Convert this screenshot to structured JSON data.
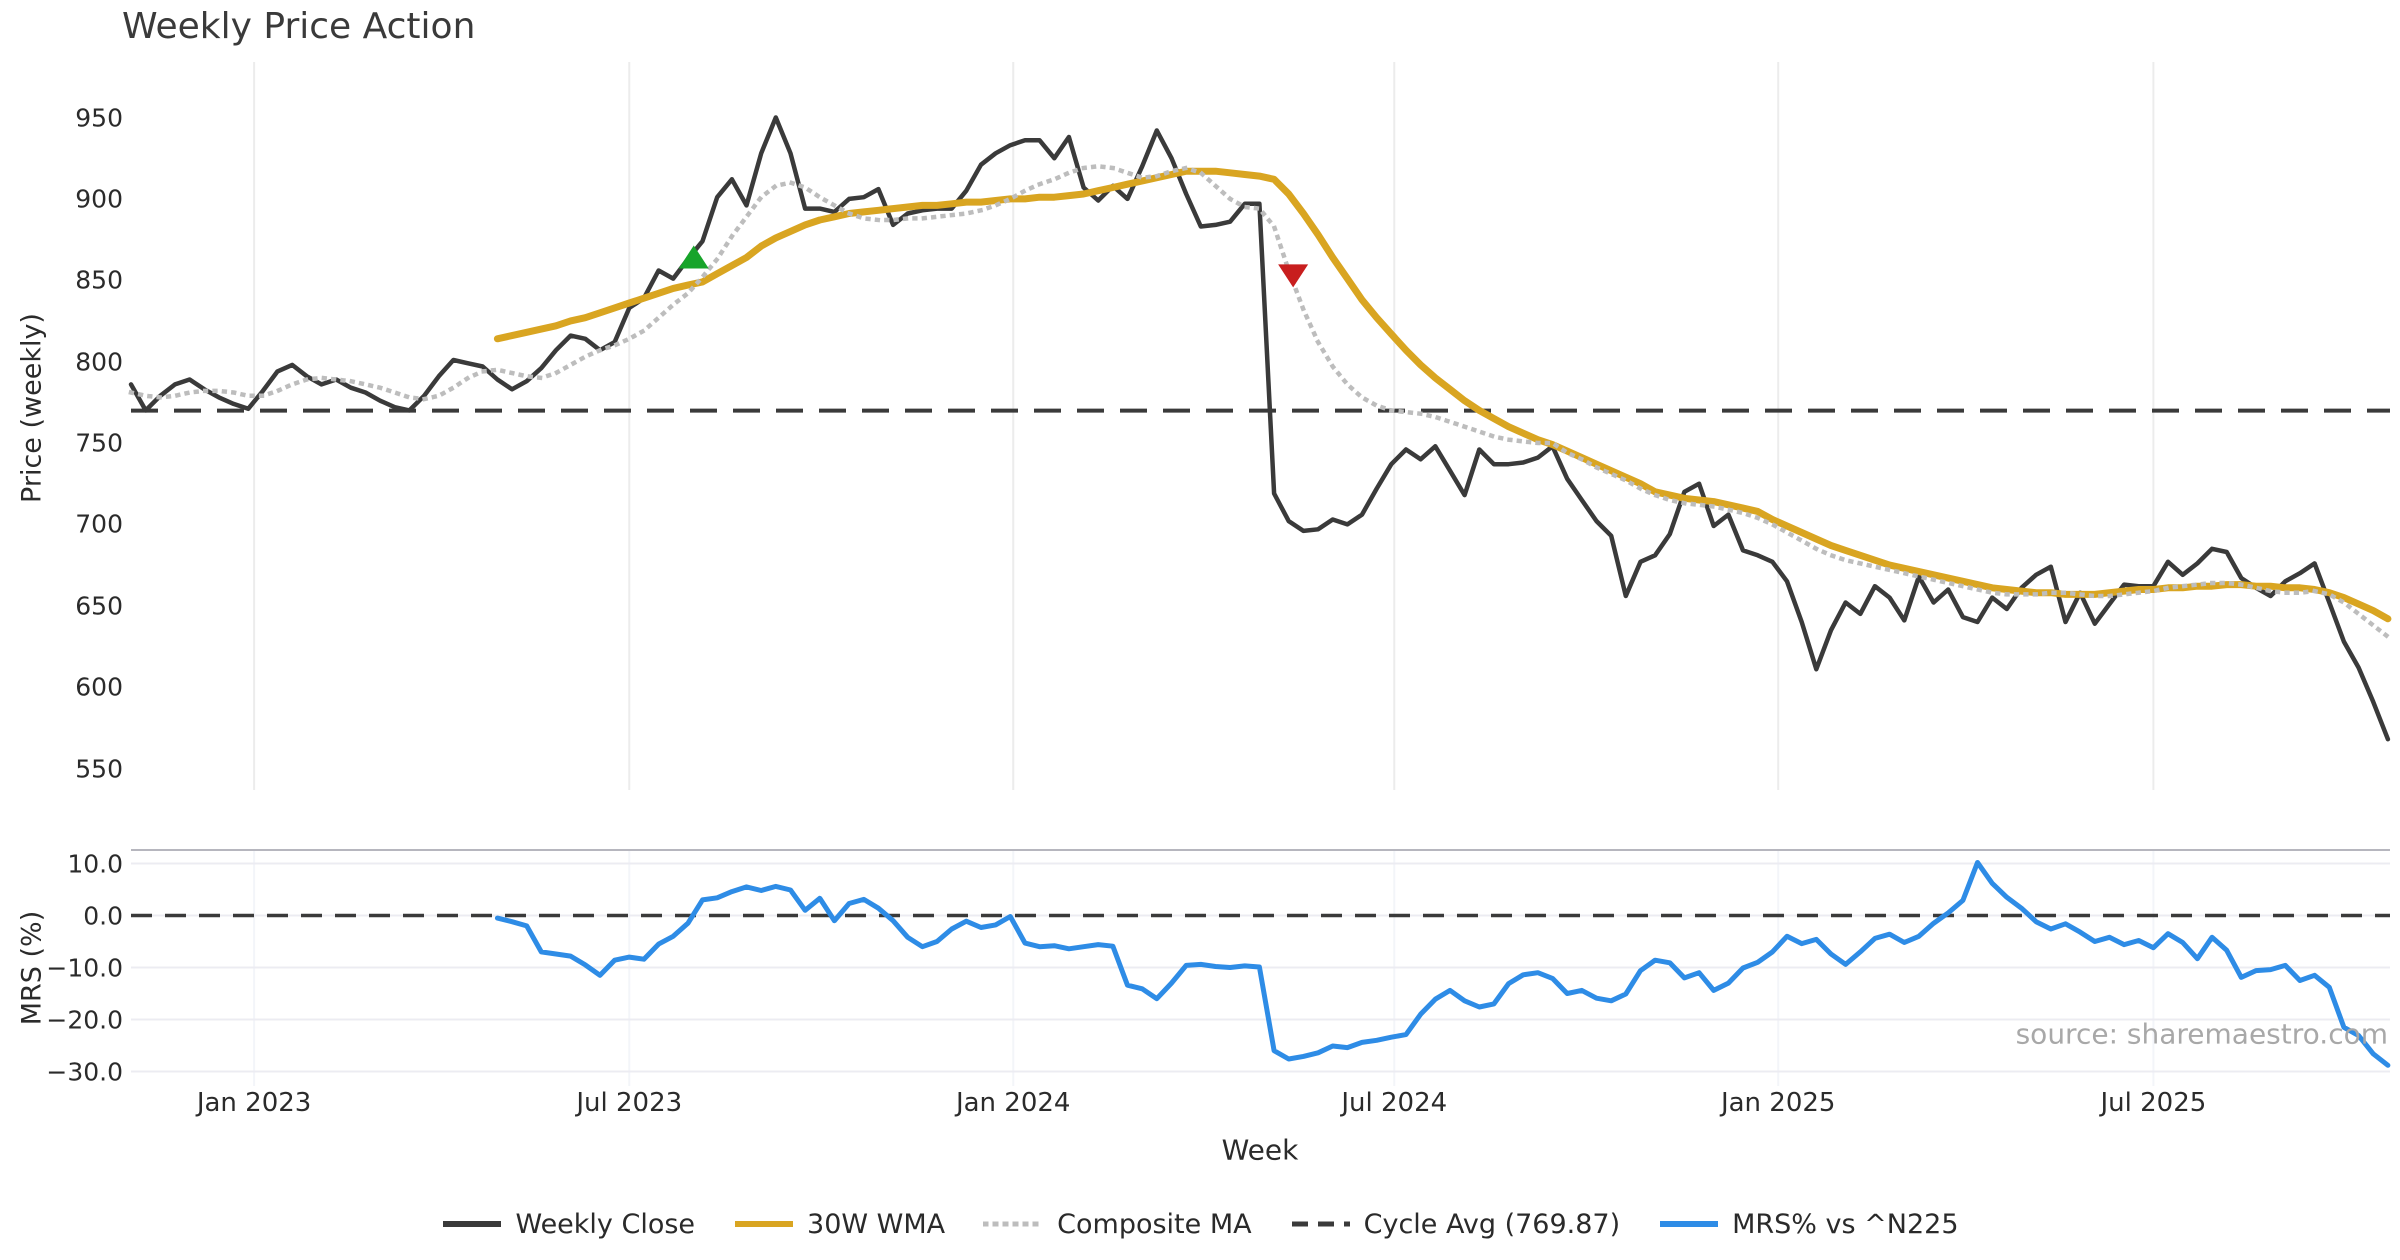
{
  "source_note": "source: sharemaestro.com",
  "chart_data": {
    "type": "line",
    "title": "Weekly Price Action",
    "xlabel": "Week",
    "grid": "vertical-top-panel, horizontal-bottom-panel",
    "legend_position": "bottom-center",
    "panels": [
      {
        "name": "price",
        "ylabel": "Price (weekly)",
        "ylim": [
          535,
          985
        ],
        "tick_values": [
          950,
          900,
          850,
          800,
          750,
          700,
          650,
          600,
          550
        ],
        "tick_labels": [
          "950",
          "900",
          "850",
          "800",
          "750",
          "700",
          "650",
          "600",
          "550"
        ]
      },
      {
        "name": "mrs",
        "ylabel": "MRS (%)",
        "ylim": [
          -32.5,
          13
        ],
        "tick_values": [
          10,
          0,
          -10,
          -20,
          -30
        ],
        "tick_labels": [
          "10.0",
          "0.0",
          "−10.0",
          "−20.0",
          "−30.0"
        ]
      }
    ],
    "x_ticks": [
      {
        "label": "Jan 2023",
        "week": 8.4
      },
      {
        "label": "Jul 2023",
        "week": 34
      },
      {
        "label": "Jan 2024",
        "week": 60.2
      },
      {
        "label": "Jul 2024",
        "week": 86.2
      },
      {
        "label": "Jan 2025",
        "week": 112.4
      },
      {
        "label": "Jul 2025",
        "week": 138
      }
    ],
    "series": [
      {
        "name": "Weekly Close",
        "panel": "price",
        "style": "solid",
        "color": "#3a3a3a",
        "width": 4.5,
        "start_week": 0,
        "values": [
          786,
          770,
          779,
          786,
          789,
          783,
          778,
          774,
          771,
          782,
          794,
          798,
          791,
          786,
          789,
          784,
          781,
          776,
          772,
          770,
          779,
          791,
          801,
          799,
          797,
          789,
          783,
          788,
          796,
          807,
          816,
          814,
          807,
          812,
          833,
          839,
          856,
          851,
          863,
          874,
          901,
          912,
          896,
          928,
          950,
          928,
          894,
          894,
          892,
          900,
          901,
          906,
          884,
          891,
          893,
          894,
          894,
          905,
          921,
          928,
          933,
          936,
          936,
          925,
          938,
          907,
          899,
          908,
          900,
          920,
          942,
          925,
          903,
          883,
          884,
          886,
          897,
          897,
          719,
          702,
          696,
          697,
          703,
          700,
          706,
          722,
          737,
          746,
          740,
          748,
          733,
          718,
          746,
          737,
          737,
          738,
          741,
          748,
          728,
          715,
          702,
          693,
          656,
          677,
          681,
          694,
          720,
          725,
          699,
          706,
          684,
          681,
          677,
          665,
          640,
          611,
          635,
          652,
          645,
          662,
          655,
          641,
          668,
          652,
          660,
          643,
          640,
          655,
          648,
          661,
          669,
          674,
          640,
          658,
          639,
          651,
          663,
          662,
          662,
          677,
          669,
          676,
          685,
          683,
          667,
          661,
          656,
          665,
          670,
          676,
          652,
          628,
          612,
          591,
          568
        ]
      },
      {
        "name": "30W WMA",
        "panel": "price",
        "style": "solid",
        "color": "#d9a521",
        "width": 7,
        "start_week": 25,
        "values": [
          814,
          816,
          818,
          820,
          822,
          825,
          827,
          830,
          833,
          836,
          839,
          842,
          845,
          847,
          849,
          854,
          859,
          864,
          871,
          876,
          880,
          884,
          887,
          889,
          891,
          892,
          893,
          894,
          895,
          896,
          896,
          897,
          898,
          898,
          899,
          900,
          900,
          901,
          901,
          902,
          903,
          905,
          907,
          909,
          911,
          913,
          915,
          917,
          917,
          917,
          916,
          915,
          914,
          912,
          903,
          891,
          878,
          864,
          851,
          838,
          827,
          817,
          807,
          798,
          790,
          783,
          776,
          770,
          765,
          760,
          756,
          752,
          749,
          745,
          741,
          737,
          733,
          729,
          725,
          720,
          718,
          716,
          715,
          714,
          712,
          710,
          708,
          703,
          699,
          695,
          691,
          687,
          684,
          681,
          678,
          675,
          673,
          671,
          669,
          667,
          665,
          663,
          661,
          660,
          659,
          658,
          658,
          657,
          657,
          657,
          658,
          659,
          660,
          660,
          661,
          661,
          662,
          662,
          663,
          663,
          662,
          662,
          661,
          661,
          660,
          658,
          655,
          651,
          647,
          642
        ]
      },
      {
        "name": "Composite MA",
        "panel": "price",
        "style": "dotted",
        "color": "#bdbdbd",
        "width": 4.5,
        "start_week": 0,
        "values": [
          781,
          779,
          778,
          779,
          781,
          782,
          782,
          781,
          779,
          779,
          782,
          786,
          789,
          790,
          789,
          788,
          786,
          784,
          781,
          778,
          777,
          779,
          784,
          790,
          794,
          795,
          793,
          791,
          790,
          793,
          798,
          803,
          807,
          810,
          814,
          819,
          827,
          835,
          842,
          852,
          863,
          877,
          889,
          901,
          908,
          910,
          907,
          901,
          896,
          891,
          888,
          887,
          887,
          888,
          888,
          889,
          890,
          891,
          893,
          896,
          900,
          905,
          909,
          912,
          916,
          919,
          920,
          919,
          916,
          913,
          914,
          917,
          919,
          916,
          908,
          900,
          895,
          894,
          883,
          856,
          832,
          812,
          797,
          786,
          778,
          773,
          770,
          769,
          768,
          766,
          763,
          760,
          757,
          754,
          752,
          751,
          750,
          750,
          744,
          740,
          735,
          731,
          727,
          722,
          718,
          715,
          713,
          712,
          711,
          709,
          707,
          704,
          700,
          695,
          690,
          685,
          681,
          678,
          676,
          674,
          672,
          670,
          668,
          666,
          664,
          662,
          660,
          658,
          657,
          657,
          657,
          658,
          658,
          657,
          656,
          656,
          657,
          658,
          659,
          661,
          662,
          663,
          664,
          664,
          663,
          661,
          659,
          658,
          658,
          659,
          657,
          652,
          645,
          638,
          631
        ]
      },
      {
        "name": "Cycle Avg (769.87)",
        "panel": "price",
        "style": "dashed",
        "color": "#3a3a3a",
        "width": 4,
        "constant": 769.87
      },
      {
        "name": "MRS% vs ^N225",
        "panel": "mrs",
        "style": "solid",
        "color": "#2e8ce6",
        "width": 5,
        "start_week": 25,
        "values": [
          -0.5,
          -1.2,
          -2.0,
          -7.0,
          -7.4,
          -7.8,
          -9.5,
          -11.5,
          -8.6,
          -8.0,
          -8.4,
          -5.5,
          -4.0,
          -1.5,
          3.0,
          3.4,
          4.6,
          5.5,
          4.8,
          5.6,
          4.9,
          1.0,
          3.3,
          -1.0,
          2.3,
          3.1,
          1.4,
          -1.0,
          -4.2,
          -6.0,
          -5.0,
          -2.6,
          -1.1,
          -2.3,
          -1.8,
          -0.2,
          -5.3,
          -6.0,
          -5.8,
          -6.4,
          -6.0,
          -5.6,
          -5.9,
          -13.4,
          -14.1,
          -16.0,
          -13.0,
          -9.6,
          -9.4,
          -9.8,
          -10.0,
          -9.7,
          -9.9,
          -26.0,
          -27.6,
          -27.1,
          -26.4,
          -25.1,
          -25.4,
          -24.4,
          -24.0,
          -23.4,
          -22.9,
          -19.0,
          -16.1,
          -14.4,
          -16.4,
          -17.6,
          -17.0,
          -13.1,
          -11.4,
          -11.0,
          -12.1,
          -15.0,
          -14.4,
          -15.9,
          -16.4,
          -15.1,
          -10.6,
          -8.6,
          -9.1,
          -12.0,
          -11.0,
          -14.4,
          -13.0,
          -10.1,
          -9.0,
          -7.0,
          -4.0,
          -5.4,
          -4.6,
          -7.4,
          -9.4,
          -7.0,
          -4.4,
          -3.6,
          -5.2,
          -4.0,
          -1.5,
          0.5,
          2.9,
          10.2,
          6.2,
          3.5,
          1.4,
          -1.2,
          -2.6,
          -1.6,
          -3.2,
          -5.0,
          -4.2,
          -5.6,
          -4.8,
          -6.2,
          -3.5,
          -5.2,
          -8.3,
          -4.2,
          -6.7,
          -11.9,
          -10.6,
          -10.4,
          -9.6,
          -12.5,
          -11.5,
          -13.8,
          -21.5,
          -23.1,
          -26.6,
          -28.8
        ]
      }
    ],
    "mrs_zero_line": {
      "style": "dashed",
      "color": "#3a3a3a",
      "value": 0
    },
    "markers": [
      {
        "type": "triangle-up",
        "color": "#17a42a",
        "week": 38.4,
        "value": 864
      },
      {
        "type": "triangle-down",
        "color": "#c81e1e",
        "week": 79.3,
        "value": 853
      }
    ]
  }
}
